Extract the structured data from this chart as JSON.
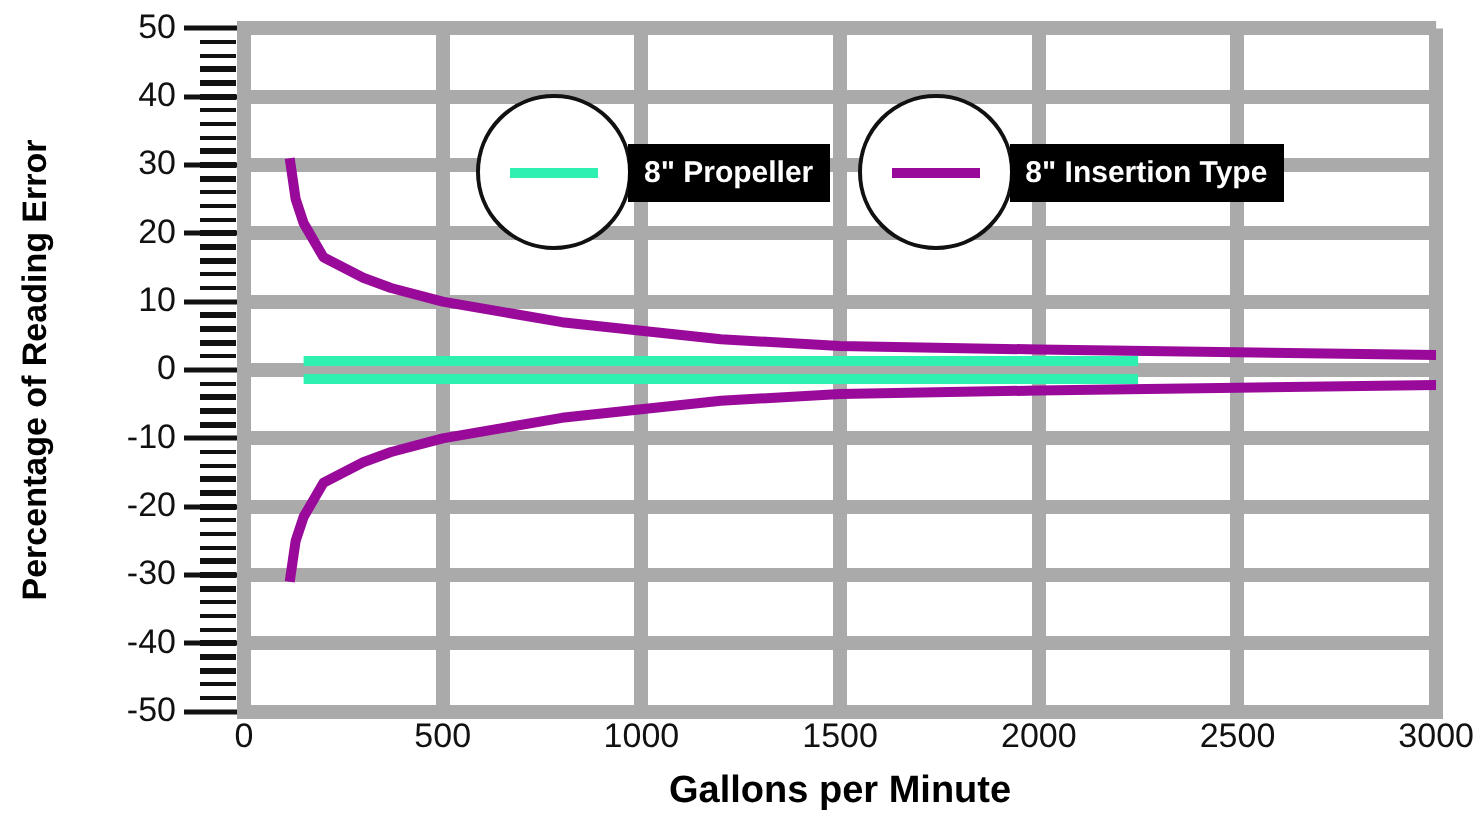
{
  "chart_data": {
    "type": "line",
    "xlabel": "Gallons per Minute",
    "ylabel": "Percentage of Reading Error",
    "xlim": [
      0,
      3000
    ],
    "xticks": [
      0,
      500,
      1000,
      1500,
      2000,
      2500,
      3000
    ],
    "ylim": [
      -50,
      50
    ],
    "yticks": [
      -50,
      -40,
      -30,
      -20,
      -10,
      0,
      10,
      20,
      30,
      40,
      50
    ],
    "grid": true,
    "legend": "top",
    "marker": "none",
    "line_style": "solid",
    "series": [
      {
        "name": "8\" Propeller",
        "color": "#2ef0b0",
        "x": [
          150,
          2250
        ],
        "values": [
          1.3,
          1.3
        ]
      },
      {
        "color": "#2ef0b0",
        "x": [
          150,
          2250
        ],
        "values": [
          -1.3,
          -1.3
        ]
      },
      {
        "name": "8\" Insertion Type",
        "color": "#9a0a9a",
        "x": [
          115,
          130,
          150,
          200,
          300,
          370,
          500,
          800,
          1200,
          1500,
          2000,
          2500,
          3000
        ],
        "values": [
          31,
          25,
          21.5,
          16.5,
          13.5,
          12,
          10,
          7,
          4.5,
          3.5,
          3,
          2.6,
          2.2
        ]
      },
      {
        "color": "#9a0a9a",
        "x": [
          115,
          130,
          150,
          200,
          300,
          370,
          500,
          800,
          1200,
          1500,
          2000,
          2500,
          3000
        ],
        "values": [
          -31,
          -25,
          -21.5,
          -16.5,
          -13.5,
          -12,
          -10,
          -7,
          -4.5,
          -3.5,
          -3,
          -2.6,
          -2.2
        ]
      }
    ]
  }
}
